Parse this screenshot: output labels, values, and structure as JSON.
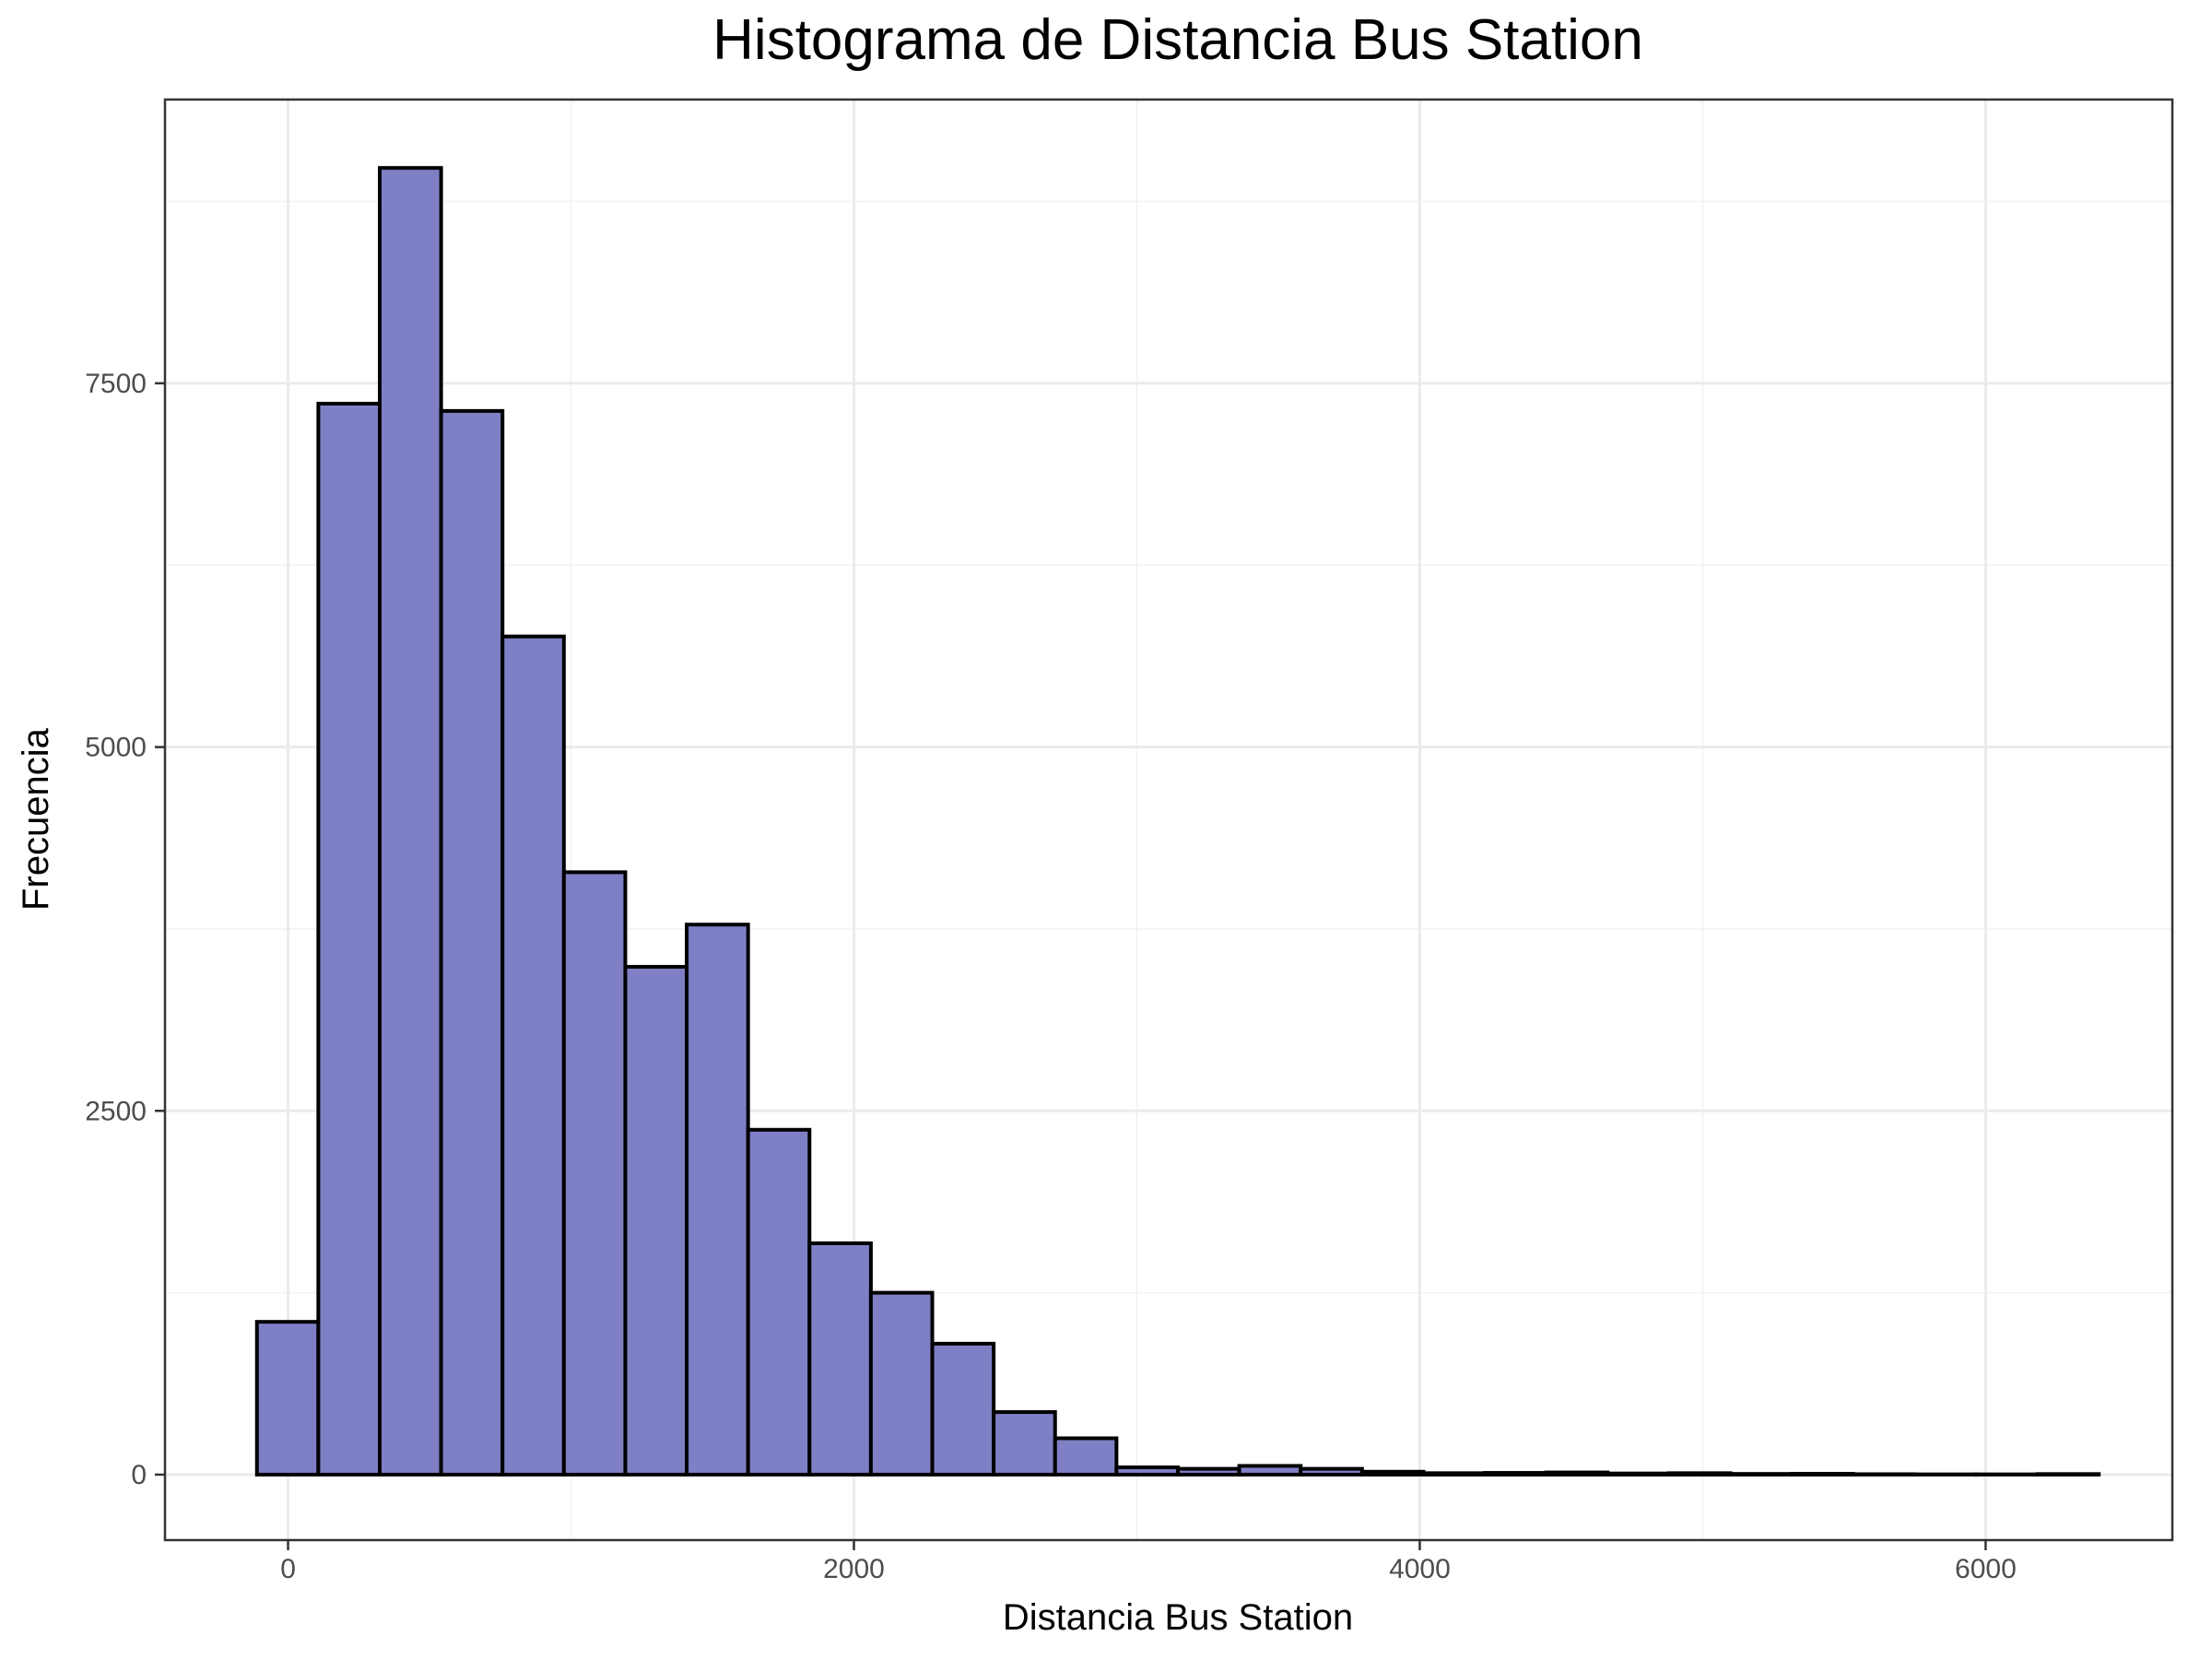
{
  "chart_data": {
    "type": "bar",
    "title": "Histograma de Distancia Bus Station",
    "xlabel": "Distancia Bus Station",
    "ylabel": "Frecuencia",
    "x_ticks": [
      0,
      2000,
      4000,
      6000
    ],
    "y_ticks": [
      0,
      2500,
      5000,
      7500
    ],
    "xlim": [
      -435,
      6660
    ],
    "ylim": [
      -450,
      9450
    ],
    "grid": true,
    "bar_fill": "#7f7fc6",
    "bar_stroke": "#000000",
    "bins": [
      {
        "x0": -110,
        "x1": 107,
        "count": 1050
      },
      {
        "x0": 107,
        "x1": 324,
        "count": 7360
      },
      {
        "x0": 324,
        "x1": 541,
        "count": 8980
      },
      {
        "x0": 541,
        "x1": 758,
        "count": 7310
      },
      {
        "x0": 758,
        "x1": 975,
        "count": 5760
      },
      {
        "x0": 975,
        "x1": 1192,
        "count": 4140
      },
      {
        "x0": 1192,
        "x1": 1409,
        "count": 3490
      },
      {
        "x0": 1409,
        "x1": 1626,
        "count": 3780
      },
      {
        "x0": 1626,
        "x1": 1843,
        "count": 2370
      },
      {
        "x0": 1843,
        "x1": 2060,
        "count": 1590
      },
      {
        "x0": 2060,
        "x1": 2277,
        "count": 1250
      },
      {
        "x0": 2277,
        "x1": 2494,
        "count": 900
      },
      {
        "x0": 2494,
        "x1": 2711,
        "count": 430
      },
      {
        "x0": 2711,
        "x1": 2928,
        "count": 250
      },
      {
        "x0": 2928,
        "x1": 3145,
        "count": 50
      },
      {
        "x0": 3145,
        "x1": 3362,
        "count": 40
      },
      {
        "x0": 3362,
        "x1": 3579,
        "count": 60
      },
      {
        "x0": 3579,
        "x1": 3796,
        "count": 40
      },
      {
        "x0": 3796,
        "x1": 4013,
        "count": 20
      },
      {
        "x0": 4013,
        "x1": 4230,
        "count": 10
      },
      {
        "x0": 4230,
        "x1": 4447,
        "count": 12
      },
      {
        "x0": 4447,
        "x1": 4664,
        "count": 15
      },
      {
        "x0": 4664,
        "x1": 4881,
        "count": 8
      },
      {
        "x0": 4881,
        "x1": 5098,
        "count": 10
      },
      {
        "x0": 5098,
        "x1": 5315,
        "count": 5
      },
      {
        "x0": 5315,
        "x1": 5532,
        "count": 6
      },
      {
        "x0": 5532,
        "x1": 5749,
        "count": 3
      },
      {
        "x0": 5749,
        "x1": 5966,
        "count": 2
      },
      {
        "x0": 5966,
        "x1": 6183,
        "count": 2
      },
      {
        "x0": 6183,
        "x1": 6400,
        "count": 4
      }
    ]
  }
}
